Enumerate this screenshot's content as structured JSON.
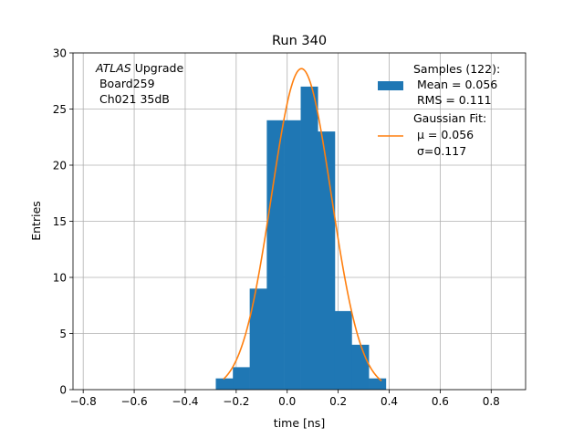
{
  "chart_data": {
    "type": "bar",
    "title": "Run 340",
    "xlabel": "time [ns]",
    "ylabel": "Entries",
    "xlim": [
      -0.84,
      0.935
    ],
    "ylim": [
      0,
      30
    ],
    "grid": true,
    "xticks": [
      -0.8,
      -0.6,
      -0.4,
      -0.2,
      0.0,
      0.2,
      0.4,
      0.6,
      0.8
    ],
    "xtick_labels": [
      "−0.8",
      "−0.6",
      "−0.4",
      "−0.2",
      "0.0",
      "0.2",
      "0.4",
      "0.6",
      "0.8"
    ],
    "yticks": [
      0,
      5,
      10,
      15,
      20,
      25,
      30
    ],
    "ytick_labels": [
      "0",
      "5",
      "10",
      "15",
      "20",
      "25",
      "30"
    ],
    "histogram": {
      "name": "Samples (122):",
      "color": "#1f77b4",
      "bin_edges": [
        -0.28,
        -0.213,
        -0.147,
        -0.08,
        -0.013,
        0.053,
        0.12,
        0.187,
        0.253,
        0.32,
        0.387
      ],
      "counts": [
        1,
        2,
        9,
        24,
        24,
        27,
        23,
        7,
        4,
        1
      ]
    },
    "fit": {
      "name": "Gaussian Fit:",
      "color": "#ff7f0e",
      "mu": 0.056,
      "sigma": 0.117,
      "amplitude": 28.6,
      "x_range": [
        -0.25,
        0.37
      ]
    },
    "annotation": {
      "italic": "ATLAS",
      "rest": " Upgrade",
      "line2": " Board259",
      "line3": " Ch021 35dB"
    },
    "legend": {
      "position": "top-right",
      "samples_title": "Samples (122):",
      "samples_mean": " Mean = 0.056",
      "samples_rms": " RMS = 0.111",
      "fit_title": "Gaussian Fit:",
      "fit_mu": " μ = 0.056",
      "fit_sigma": " σ=0.117"
    }
  }
}
